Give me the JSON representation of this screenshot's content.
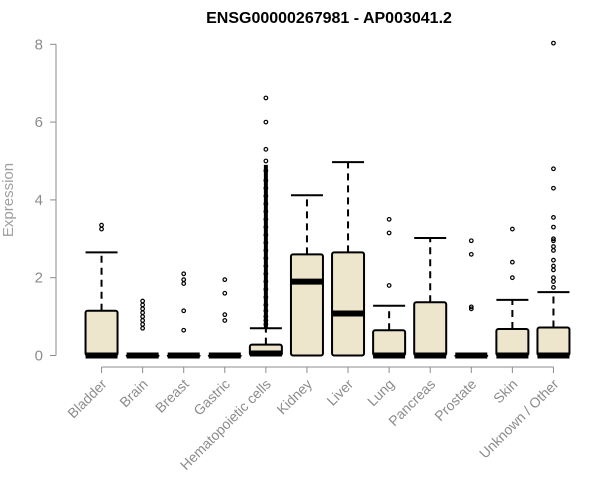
{
  "chart_data": {
    "type": "box",
    "title": "ENSG00000267981 - AP003041.2",
    "xlabel": "",
    "ylabel": "Expression",
    "ylim": [
      0,
      8
    ],
    "yticks": [
      "0",
      "2",
      "4",
      "6",
      "8"
    ],
    "grid": false,
    "box_color": "#ede6cd",
    "categories": [
      "Bladder",
      "Brain",
      "Breast",
      "Gastric",
      "Hematopoietic cells",
      "Kidney",
      "Liver",
      "Lung",
      "Pancreas",
      "Prostate",
      "Skin",
      "Unknown / Other"
    ],
    "boxes": [
      {
        "q1": 0,
        "median": 0,
        "q3": 1.15,
        "whisker_low": 0,
        "whisker_high": 2.65,
        "outliers": [
          3.25,
          3.35
        ]
      },
      {
        "q1": 0,
        "median": 0,
        "q3": 0,
        "whisker_low": 0,
        "whisker_high": 0,
        "outliers": [
          0.7,
          0.8,
          0.9,
          1.0,
          1.1,
          1.2,
          1.3,
          1.4
        ]
      },
      {
        "q1": 0,
        "median": 0,
        "q3": 0,
        "whisker_low": 0,
        "whisker_high": 0,
        "outliers": [
          0.65,
          1.15,
          1.85,
          1.95,
          2.1
        ]
      },
      {
        "q1": 0,
        "median": 0,
        "q3": 0,
        "whisker_low": 0,
        "whisker_high": 0,
        "outliers": [
          0.9,
          1.05,
          1.6,
          1.95
        ]
      },
      {
        "q1": 0,
        "median": 0.05,
        "q3": 0.28,
        "whisker_low": 0,
        "whisker_high": 0.7,
        "outliers": [
          6.62,
          6.0,
          5.3,
          5.0,
          4.75,
          4.5,
          4.3,
          4.1,
          3.9,
          3.7,
          3.5,
          3.3,
          3.1,
          2.9,
          2.7,
          2.5,
          2.3,
          2.1,
          1.9,
          1.7,
          1.5,
          1.3,
          1.15,
          1.0,
          0.9,
          0.8
        ]
      },
      {
        "q1": 0,
        "median": 1.9,
        "q3": 2.6,
        "whisker_low": 0,
        "whisker_high": 4.12,
        "outliers": []
      },
      {
        "q1": 0,
        "median": 1.08,
        "q3": 2.65,
        "whisker_low": 0,
        "whisker_high": 4.97,
        "outliers": []
      },
      {
        "q1": 0,
        "median": 0,
        "q3": 0.65,
        "whisker_low": 0,
        "whisker_high": 1.28,
        "outliers": [
          1.8,
          3.15,
          3.5
        ]
      },
      {
        "q1": 0,
        "median": 0,
        "q3": 1.37,
        "whisker_low": 0,
        "whisker_high": 3.02,
        "outliers": []
      },
      {
        "q1": 0,
        "median": 0,
        "q3": 0,
        "whisker_low": 0,
        "whisker_high": 0,
        "outliers": [
          1.2,
          1.25,
          2.6,
          2.95
        ]
      },
      {
        "q1": 0,
        "median": 0,
        "q3": 0.68,
        "whisker_low": 0,
        "whisker_high": 1.43,
        "outliers": [
          2.0,
          2.4,
          3.25
        ]
      },
      {
        "q1": 0,
        "median": 0,
        "q3": 0.72,
        "whisker_low": 0,
        "whisker_high": 1.63,
        "outliers": [
          8.03,
          4.8,
          4.3,
          3.55,
          3.3,
          3.0,
          2.95,
          2.8,
          2.7,
          2.45,
          2.3,
          2.2,
          2.0,
          1.9,
          1.75
        ]
      }
    ]
  }
}
